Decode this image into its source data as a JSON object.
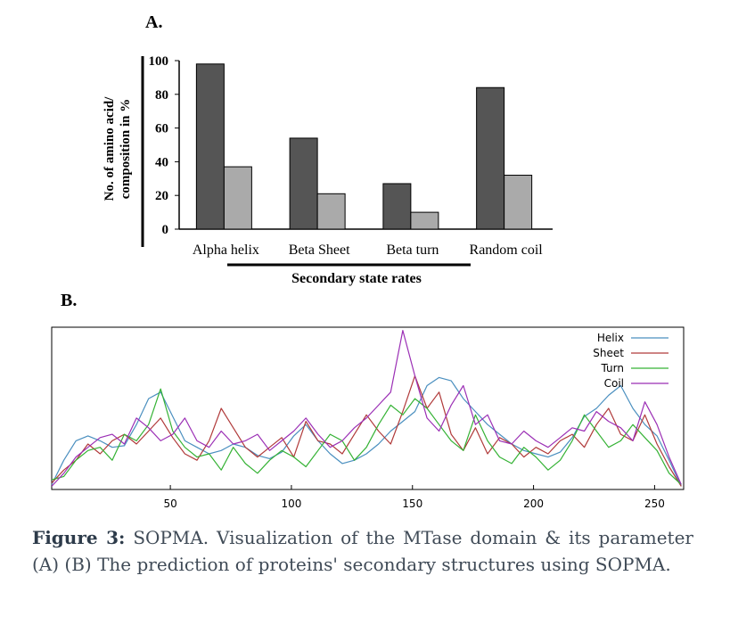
{
  "panels": {
    "a_label": "A.",
    "b_label": "B."
  },
  "caption": {
    "figure_label": "Figure 3:",
    "text": "SOPMA. Visualization of the MTase domain & its parameter (A) (B) The prediction of proteins' secondary structures using SOPMA."
  },
  "colors": {
    "helix": "#4a8fbf",
    "sheet": "#b03a3a",
    "turn": "#34b234",
    "coil": "#9b2fb5",
    "bar_dark": "#555555",
    "bar_light": "#aaaaaa"
  },
  "chart_data": [
    {
      "type": "bar",
      "categories": [
        "Alpha helix",
        "Beta Sheet",
        "Beta turn",
        "Random coil"
      ],
      "series": [
        {
          "values": [
            98,
            54,
            27,
            84
          ]
        },
        {
          "values": [
            37,
            21,
            10,
            32
          ]
        }
      ],
      "ylabel": "No. of amino acid/ composition in %",
      "xlabel": "Secondary state rates",
      "ylim": [
        0,
        100
      ],
      "yticks": [
        "0",
        "20",
        "40",
        "60",
        "80",
        "100"
      ],
      "grid": false
    },
    {
      "type": "line",
      "x": [
        1,
        6,
        11,
        16,
        21,
        26,
        31,
        36,
        41,
        46,
        51,
        56,
        61,
        66,
        71,
        76,
        81,
        86,
        91,
        96,
        101,
        106,
        111,
        116,
        121,
        126,
        131,
        136,
        141,
        146,
        151,
        156,
        161,
        166,
        171,
        176,
        181,
        186,
        191,
        196,
        201,
        206,
        211,
        216,
        221,
        226,
        231,
        236,
        241,
        246,
        251,
        256,
        261
      ],
      "xlim": [
        1,
        262
      ],
      "xticks": [
        "50",
        "100",
        "150",
        "200",
        "250"
      ],
      "ylim": [
        0,
        1
      ],
      "legend_position": "top-right",
      "series": [
        {
          "name": "Helix",
          "values": [
            0.03,
            0.18,
            0.3,
            0.33,
            0.3,
            0.26,
            0.27,
            0.4,
            0.56,
            0.6,
            0.45,
            0.3,
            0.26,
            0.22,
            0.24,
            0.28,
            0.26,
            0.21,
            0.19,
            0.23,
            0.33,
            0.4,
            0.3,
            0.22,
            0.16,
            0.18,
            0.22,
            0.28,
            0.36,
            0.42,
            0.48,
            0.64,
            0.69,
            0.67,
            0.56,
            0.48,
            0.4,
            0.34,
            0.28,
            0.24,
            0.22,
            0.2,
            0.23,
            0.32,
            0.45,
            0.5,
            0.58,
            0.64,
            0.5,
            0.4,
            0.33,
            0.18,
            0.02
          ]
        },
        {
          "name": "Sheet",
          "values": [
            0.04,
            0.12,
            0.18,
            0.28,
            0.22,
            0.3,
            0.34,
            0.28,
            0.36,
            0.44,
            0.32,
            0.22,
            0.18,
            0.3,
            0.5,
            0.38,
            0.26,
            0.2,
            0.26,
            0.32,
            0.2,
            0.42,
            0.3,
            0.28,
            0.22,
            0.34,
            0.46,
            0.36,
            0.28,
            0.48,
            0.7,
            0.5,
            0.6,
            0.34,
            0.24,
            0.38,
            0.22,
            0.32,
            0.28,
            0.2,
            0.26,
            0.22,
            0.3,
            0.34,
            0.26,
            0.4,
            0.5,
            0.34,
            0.3,
            0.46,
            0.28,
            0.14,
            0.02
          ]
        },
        {
          "name": "Turn",
          "values": [
            0.06,
            0.08,
            0.18,
            0.24,
            0.26,
            0.18,
            0.34,
            0.3,
            0.4,
            0.62,
            0.36,
            0.26,
            0.2,
            0.22,
            0.12,
            0.26,
            0.16,
            0.1,
            0.18,
            0.24,
            0.2,
            0.14,
            0.24,
            0.34,
            0.3,
            0.18,
            0.26,
            0.4,
            0.52,
            0.46,
            0.56,
            0.5,
            0.4,
            0.3,
            0.24,
            0.46,
            0.3,
            0.2,
            0.16,
            0.26,
            0.2,
            0.12,
            0.18,
            0.3,
            0.46,
            0.36,
            0.26,
            0.3,
            0.4,
            0.32,
            0.24,
            0.1,
            0.03
          ]
        },
        {
          "name": "Coil",
          "values": [
            0.02,
            0.1,
            0.2,
            0.26,
            0.32,
            0.34,
            0.28,
            0.44,
            0.38,
            0.3,
            0.34,
            0.44,
            0.3,
            0.26,
            0.36,
            0.28,
            0.3,
            0.34,
            0.24,
            0.3,
            0.36,
            0.44,
            0.34,
            0.26,
            0.3,
            0.38,
            0.44,
            0.52,
            0.6,
            0.98,
            0.7,
            0.44,
            0.36,
            0.52,
            0.64,
            0.4,
            0.46,
            0.3,
            0.28,
            0.36,
            0.3,
            0.26,
            0.32,
            0.38,
            0.36,
            0.48,
            0.42,
            0.38,
            0.3,
            0.54,
            0.4,
            0.2,
            0.03
          ]
        }
      ]
    }
  ]
}
